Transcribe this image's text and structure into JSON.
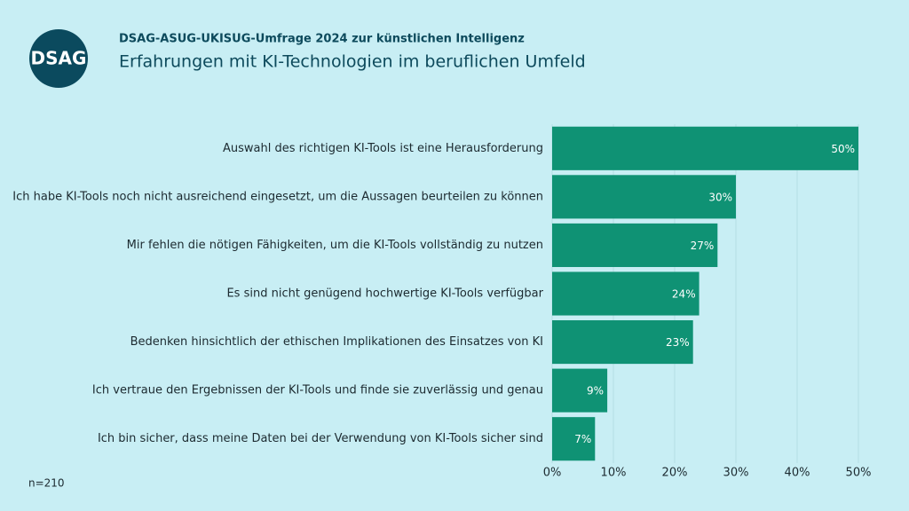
{
  "chart_data": {
    "type": "bar",
    "orientation": "horizontal",
    "logo": "DSAG",
    "subtitle": "DSAG-ASUG-UKISUG-Umfrage 2024 zur künstlichen Intelligenz",
    "title": "Erfahrungen mit KI-Technologien im beruflichen Umfeld",
    "note": "n=210",
    "categories": [
      "Auswahl des richtigen KI-Tools ist eine Herausforderung",
      "Ich habe KI-Tools noch nicht ausreichend eingesetzt, um die Aussagen beurteilen zu können",
      "Mir fehlen die nötigen Fähigkeiten, um die KI-Tools vollständig zu nutzen",
      "Es sind nicht genügend hochwertige KI-Tools verfügbar",
      "Bedenken hinsichtlich der ethischen Implikationen des Einsatzes von KI",
      "Ich vertraue den Ergebnissen der KI-Tools und finde sie zuverlässig und genau",
      "Ich bin sicher, dass meine Daten bei der Verwendung von KI-Tools sicher sind"
    ],
    "values": [
      50,
      30,
      27,
      24,
      23,
      9,
      7
    ],
    "value_labels": [
      "50%",
      "30%",
      "27%",
      "24%",
      "23%",
      "9%",
      "7%"
    ],
    "color": "#0f9274",
    "xlim": [
      0,
      50
    ],
    "xticks": [
      {
        "value": 0,
        "label": "0%"
      },
      {
        "value": 10,
        "label": "10%"
      },
      {
        "value": 20,
        "label": "20%"
      },
      {
        "value": 30,
        "label": "30%"
      },
      {
        "value": 40,
        "label": "40%"
      },
      {
        "value": 50,
        "label": "50%"
      }
    ],
    "grid": true
  }
}
